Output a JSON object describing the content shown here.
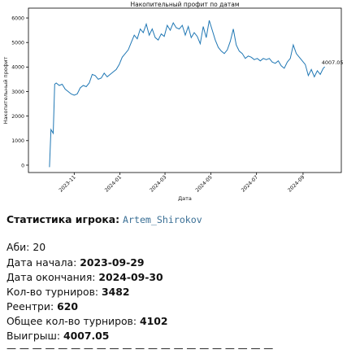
{
  "chart_data": {
    "type": "line",
    "title": "Накопительный профит по датам",
    "xlabel": "Дата",
    "ylabel": "Накопительный профит",
    "x_ticks": [
      "2023-11",
      "2024-01",
      "2024-03",
      "2024-05",
      "2024-07",
      "2024-09"
    ],
    "y_ticks": [
      0,
      1000,
      2000,
      3000,
      4000,
      5000,
      6000
    ],
    "xlim": [
      "2023-09-01",
      "2024-10-22"
    ],
    "ylim": [
      -300,
      6400
    ],
    "grid": false,
    "line_color": "#1f77b4",
    "final_label": "4007.05",
    "series": [
      {
        "x": [
          "2023-09-29",
          "2023-10-01",
          "2023-10-04",
          "2023-10-06",
          "2023-10-08",
          "2023-10-12",
          "2023-10-16",
          "2023-10-20",
          "2023-10-24",
          "2023-10-28",
          "2023-11-01",
          "2023-11-05",
          "2023-11-09",
          "2023-11-13",
          "2023-11-17",
          "2023-11-21",
          "2023-11-25",
          "2023-11-29",
          "2023-12-03",
          "2023-12-07",
          "2023-12-11",
          "2023-12-15",
          "2023-12-19",
          "2023-12-23",
          "2023-12-27",
          "2023-12-31",
          "2024-01-04",
          "2024-01-08",
          "2024-01-12",
          "2024-01-16",
          "2024-01-20",
          "2024-01-24",
          "2024-01-28",
          "2024-02-01",
          "2024-02-05",
          "2024-02-09",
          "2024-02-13",
          "2024-02-17",
          "2024-02-21",
          "2024-02-25",
          "2024-02-29",
          "2024-03-04",
          "2024-03-08",
          "2024-03-12",
          "2024-03-16",
          "2024-03-20",
          "2024-03-24",
          "2024-03-28",
          "2024-04-01",
          "2024-04-05",
          "2024-04-09",
          "2024-04-13",
          "2024-04-17",
          "2024-04-21",
          "2024-04-25",
          "2024-04-29",
          "2024-05-03",
          "2024-05-07",
          "2024-05-11",
          "2024-05-15",
          "2024-05-19",
          "2024-05-23",
          "2024-05-27",
          "2024-05-31",
          "2024-06-04",
          "2024-06-08",
          "2024-06-12",
          "2024-06-16",
          "2024-06-20",
          "2024-06-24",
          "2024-06-28",
          "2024-07-02",
          "2024-07-06",
          "2024-07-10",
          "2024-07-14",
          "2024-07-18",
          "2024-07-22",
          "2024-07-26",
          "2024-07-30",
          "2024-08-03",
          "2024-08-07",
          "2024-08-11",
          "2024-08-15",
          "2024-08-19",
          "2024-08-23",
          "2024-08-27",
          "2024-08-31",
          "2024-09-04",
          "2024-09-08",
          "2024-09-12",
          "2024-09-16",
          "2024-09-20",
          "2024-09-24",
          "2024-09-28",
          "2024-09-30"
        ],
        "y": [
          -80,
          1450,
          1300,
          3300,
          3350,
          3250,
          3300,
          3100,
          3000,
          2900,
          2850,
          2900,
          3150,
          3250,
          3200,
          3350,
          3700,
          3650,
          3500,
          3550,
          3750,
          3600,
          3700,
          3800,
          3900,
          4100,
          4400,
          4550,
          4700,
          5000,
          5300,
          5150,
          5550,
          5400,
          5750,
          5300,
          5550,
          5200,
          5100,
          5350,
          5250,
          5700,
          5500,
          5800,
          5600,
          5550,
          5700,
          5300,
          5650,
          5200,
          5400,
          5250,
          4950,
          5650,
          5200,
          5900,
          5500,
          5100,
          4800,
          4650,
          4550,
          4700,
          5050,
          5550,
          4900,
          4650,
          4550,
          4350,
          4450,
          4400,
          4300,
          4350,
          4250,
          4350,
          4300,
          4350,
          4200,
          4150,
          4250,
          4050,
          3950,
          4200,
          4350,
          4900,
          4550,
          4400,
          4250,
          4100,
          3650,
          3900,
          3600,
          3850,
          3700,
          3950,
          4007.05
        ]
      }
    ]
  },
  "stats": {
    "title": "Статистика игрока:",
    "username": "Artem_Shirokov",
    "abi_label": "Аби:",
    "abi_value": "20",
    "start_label": "Дата начала:",
    "start_value": "2023-09-29",
    "end_label": "Дата окончания:",
    "end_value": "2024-09-30",
    "tournaments_label": "Кол-во турниров:",
    "tournaments_value": "3482",
    "reentries_label": "Реентри:",
    "reentries_value": "620",
    "total_label": "Общее кол-во турниров:",
    "total_value": "4102",
    "winnings_label": "Выигрыш:",
    "winnings_value": "4007.05"
  },
  "divider": "— — — — — — — — — — — — — — — — — — — — —"
}
